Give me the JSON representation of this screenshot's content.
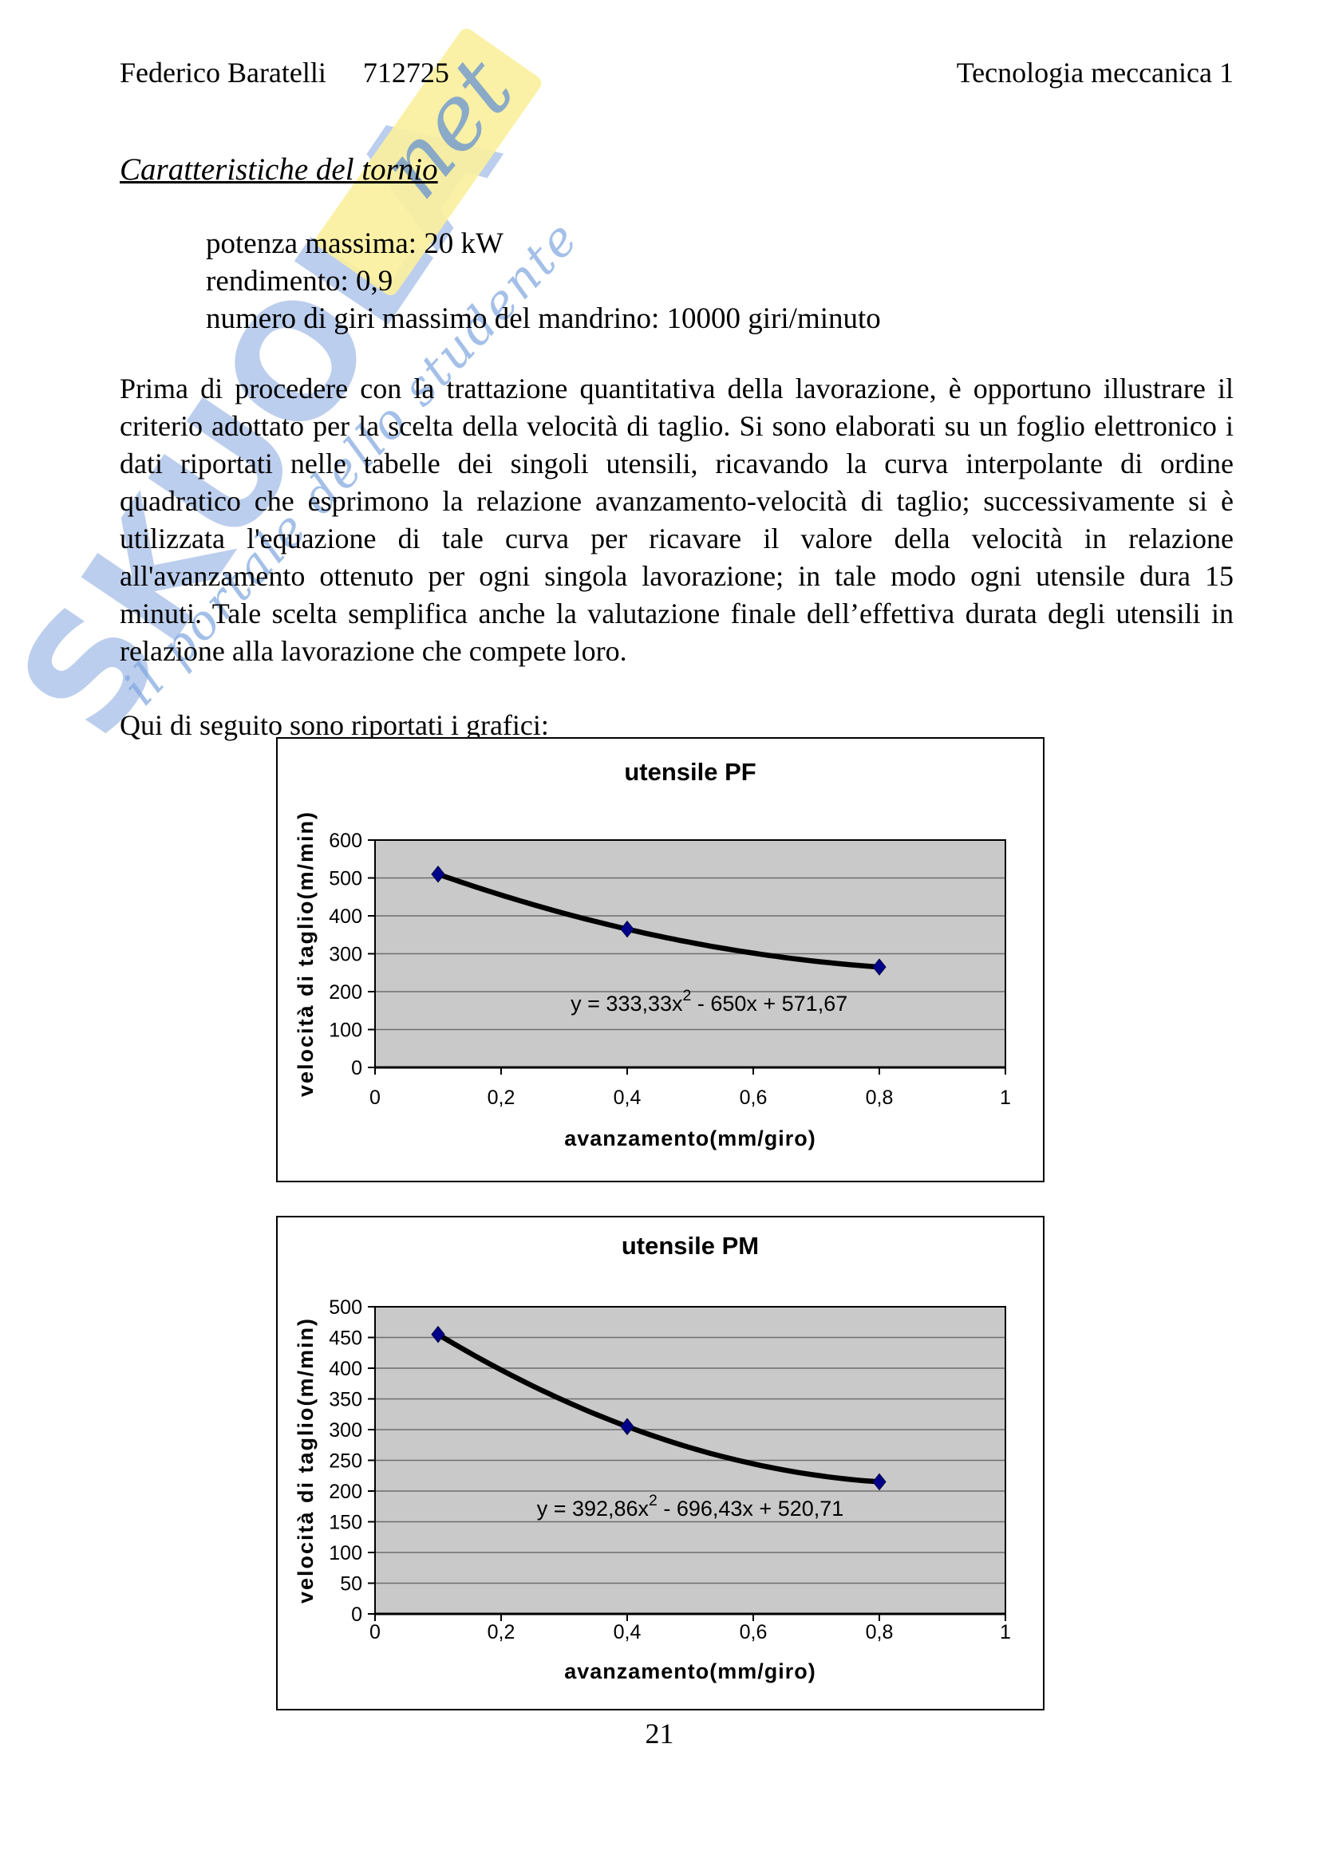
{
  "header": {
    "author": "Federico Baratelli",
    "student_id": "712725",
    "course": "Tecnologia meccanica 1"
  },
  "title": "Caratteristiche del tornio",
  "specs": [
    "potenza massima: 20 kW",
    "rendimento: 0,9",
    "numero di giri massimo del mandrino: 10000 giri/minuto"
  ],
  "paragraph": "Prima di procedere con la trattazione quantitativa della lavorazione, è opportuno illustrare il criterio adottato per la scelta della velocità di taglio. Si sono elaborati su un foglio elettronico i dati riportati nelle tabelle dei singoli utensili, ricavando la curva interpolante di ordine quadratico che esprimono la relazione avanzamento-velocità di taglio; successivamente si è utilizzata l'equazione di tale curva per ricavare il valore della velocità in relazione all'avanzamento ottenuto per ogni singola lavorazione; in tale modo ogni utensile dura 15 minuti. Tale scelta semplifica anche la valutazione finale dell’effettiva durata degli utensili in relazione alla lavorazione che compete loro.",
  "intro_line": "Qui di seguito sono riportati i grafici:",
  "page_number": "21",
  "watermark": {
    "brand": "SKUOLA",
    "net": "net",
    "tagline": "il portale dello studente",
    "blue": "#7a9edb",
    "yellow": "#faf09e"
  },
  "chart_data": [
    {
      "type": "scatter",
      "title": "utensile PF",
      "xlabel": "avanzamento(mm/giro)",
      "ylabel": "velocità di taglio(m/min)",
      "xlim": [
        0,
        1
      ],
      "ylim": [
        0,
        600
      ],
      "ytick_step": 100,
      "xticks": [
        0,
        0.2,
        0.4,
        0.6,
        0.8,
        1
      ],
      "xtick_labels": [
        "0",
        "0,2",
        "0,4",
        "0,6",
        "0,8",
        "1"
      ],
      "points": [
        [
          0.1,
          510
        ],
        [
          0.4,
          365
        ],
        [
          0.8,
          265
        ]
      ],
      "trendline": {
        "a": 333.33,
        "b": -650,
        "c": 571.67,
        "x_start": 0.1,
        "x_end": 0.8
      },
      "equation": {
        "pre": "y = 333,33x",
        "sup": "2",
        "post": " - 650x + 571,67",
        "at": [
          0.53,
          150
        ]
      },
      "grid": true,
      "plot_fill": "#c9c9c9",
      "marker_color": "#00008b",
      "legend": "none"
    },
    {
      "type": "scatter",
      "title": "utensile PM",
      "xlabel": "avanzamento(mm/giro)",
      "ylabel": "velocità di taglio(m/min)",
      "xlim": [
        0,
        1
      ],
      "ylim": [
        0,
        500
      ],
      "ytick_step": 50,
      "xticks": [
        0,
        0.2,
        0.4,
        0.6,
        0.8,
        1
      ],
      "xtick_labels": [
        "0",
        "0,2",
        "0,4",
        "0,6",
        "0,8",
        "1"
      ],
      "points": [
        [
          0.1,
          455
        ],
        [
          0.4,
          305
        ],
        [
          0.8,
          215
        ]
      ],
      "trendline": {
        "a": 392.86,
        "b": -696.43,
        "c": 520.71,
        "x_start": 0.1,
        "x_end": 0.8
      },
      "equation": {
        "pre": "y = 392,86x",
        "sup": "2",
        "post": " - 696,43x + 520,71",
        "at": [
          0.5,
          160
        ]
      },
      "grid": true,
      "plot_fill": "#c9c9c9",
      "marker_color": "#00008b",
      "legend": "none"
    }
  ]
}
